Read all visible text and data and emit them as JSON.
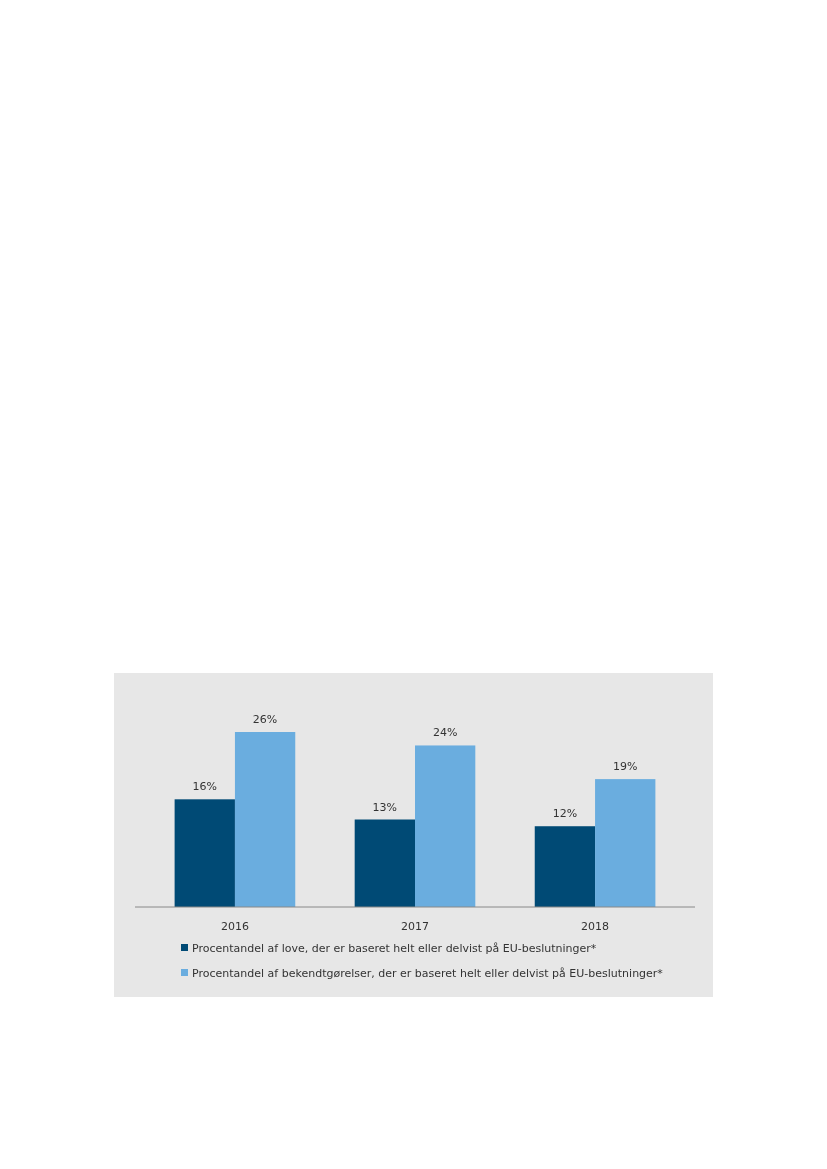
{
  "chart_data": {
    "type": "bar",
    "categories": [
      "2016",
      "2017",
      "2018"
    ],
    "series": [
      {
        "name": "Procentandel af love, der er baseret helt eller delvist på EU-beslutninger*",
        "color": "#004a75",
        "values": [
          16,
          13,
          12
        ],
        "value_labels": [
          "16%",
          "13%",
          "12%"
        ]
      },
      {
        "name": "Procentandel af bekendtgørelser, der er baseret helt eller delvist på EU-beslutninger*",
        "color": "#6aaddf",
        "values": [
          26,
          24,
          19
        ],
        "value_labels": [
          "26%",
          "24%",
          "19%"
        ]
      }
    ],
    "legend": "bottom"
  }
}
